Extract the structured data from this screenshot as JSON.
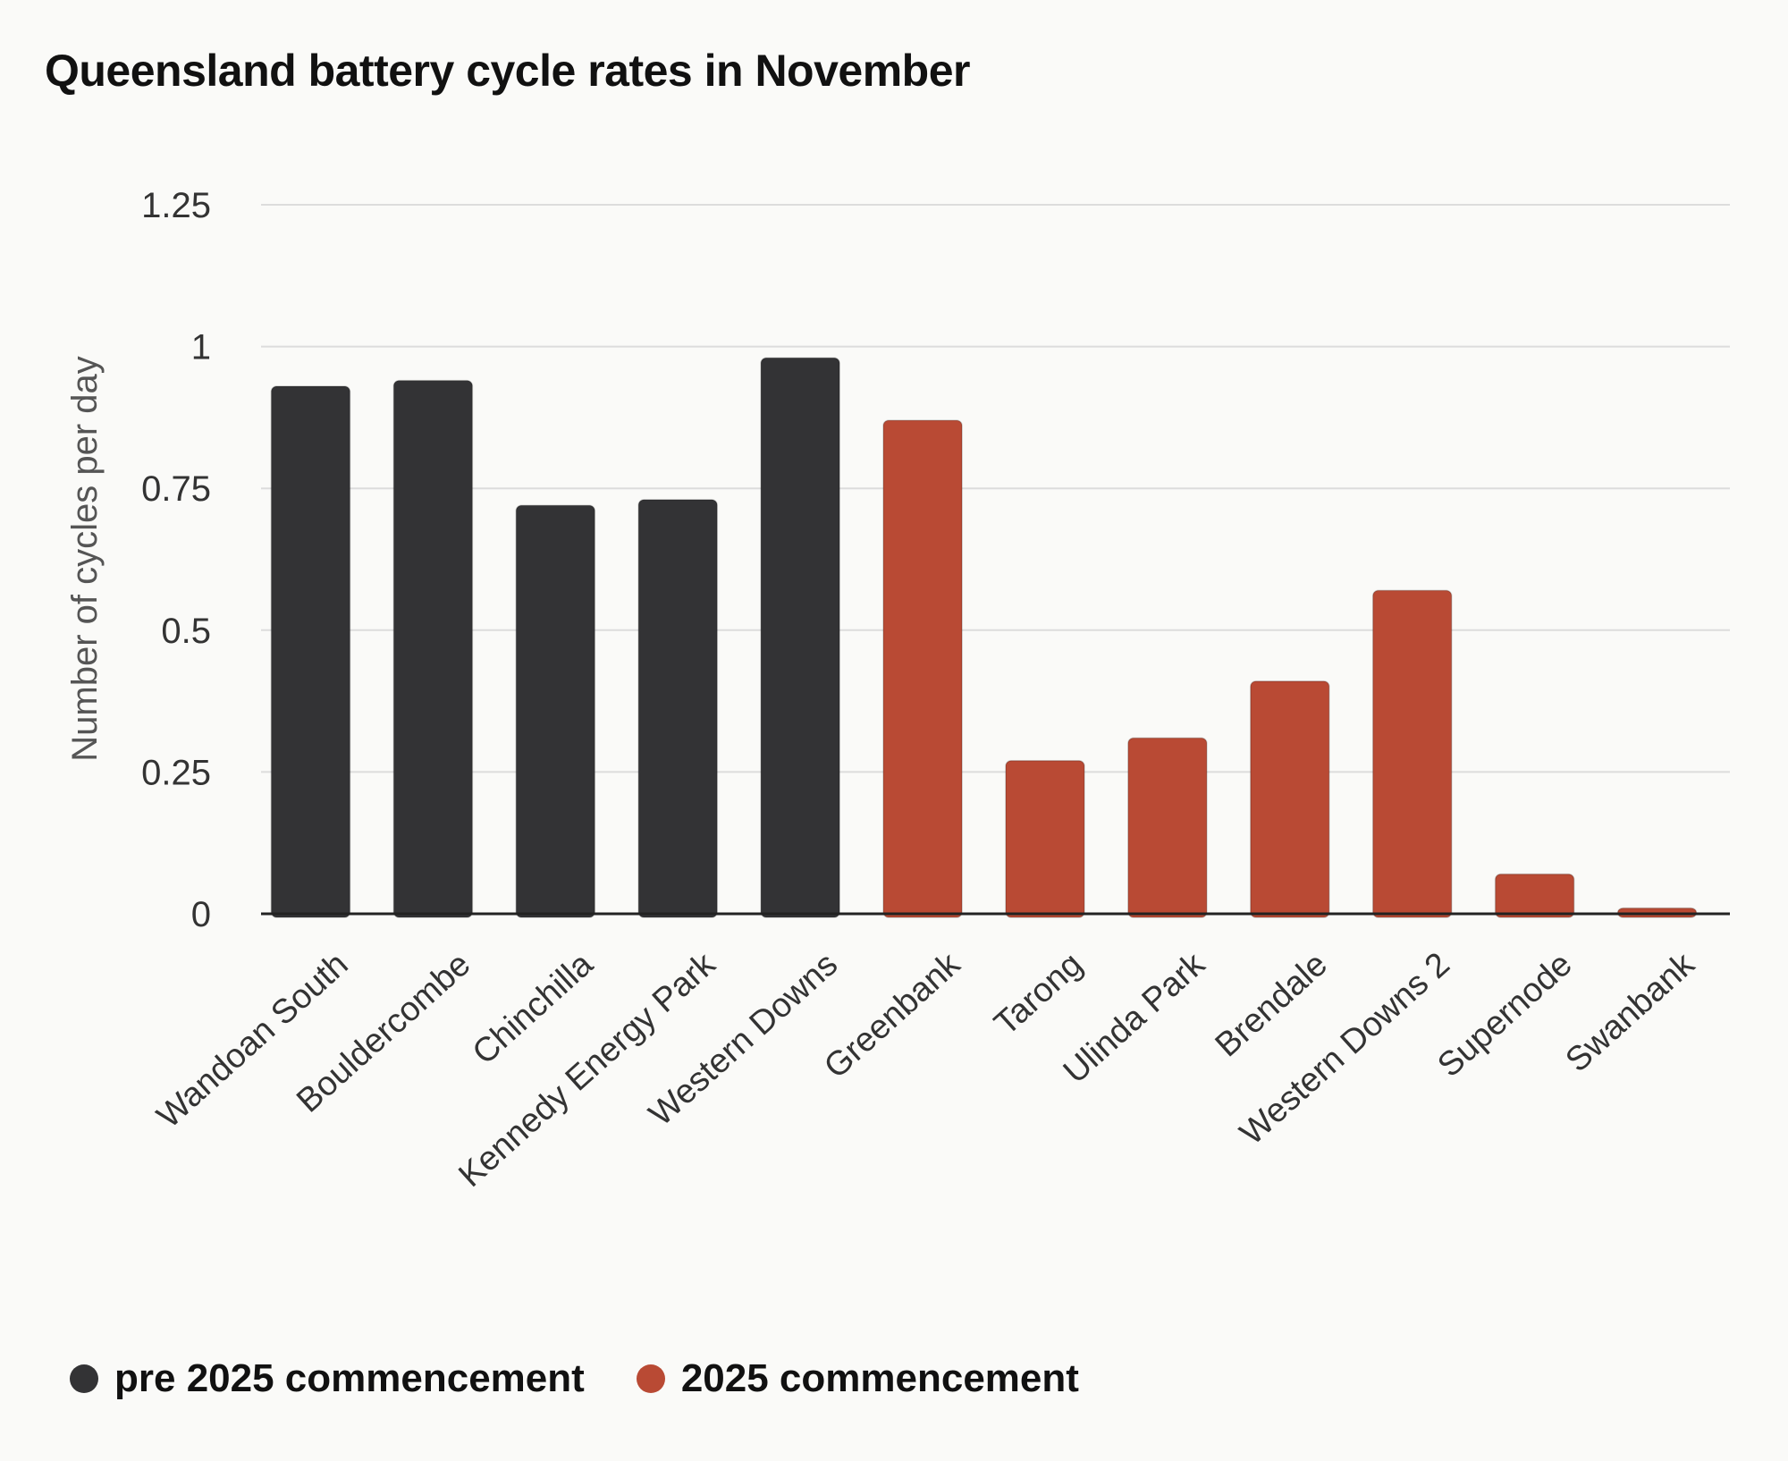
{
  "chart_data": {
    "type": "bar",
    "title": "Queensland battery cycle rates in November",
    "xlabel": "",
    "ylabel": "Number of cycles per day",
    "ylim": [
      0,
      1.25
    ],
    "yticks": [
      0,
      0.25,
      0.5,
      0.75,
      1,
      1.25
    ],
    "ytick_labels": [
      "0",
      "0.25",
      "0.5",
      "0.75",
      "1",
      "1.25"
    ],
    "grid": true,
    "legend_position": "bottom-left",
    "categories": [
      "Wandoan South",
      "Bouldercombe",
      "Chinchilla",
      "Kennedy Energy Park",
      "Western Downs",
      "Greenbank",
      "Tarong",
      "Ulinda Park",
      "Brendale",
      "Western Downs 2",
      "Supernode",
      "Swanbank"
    ],
    "values": [
      0.93,
      0.94,
      0.72,
      0.73,
      0.98,
      0.87,
      0.27,
      0.31,
      0.41,
      0.57,
      0.07,
      0.01
    ],
    "groups": [
      "pre",
      "pre",
      "pre",
      "pre",
      "pre",
      "new",
      "new",
      "new",
      "new",
      "new",
      "new",
      "new"
    ],
    "series": [
      {
        "key": "pre",
        "name": "pre 2025 commencement",
        "color": "#333335"
      },
      {
        "key": "new",
        "name": "2025 commencement",
        "color": "#b94a34"
      }
    ]
  }
}
